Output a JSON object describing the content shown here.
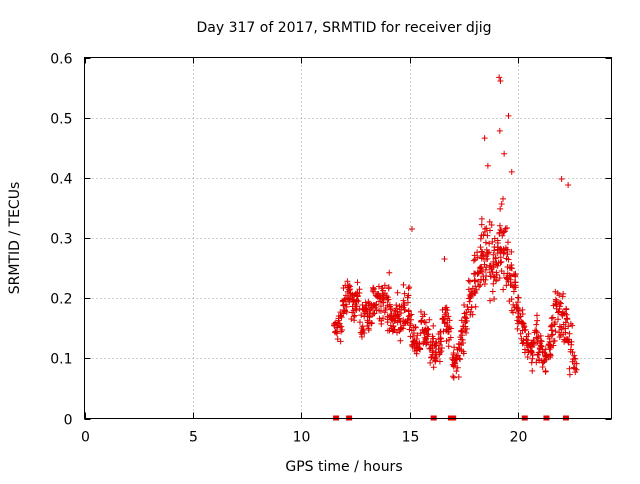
{
  "colors": {
    "series": "#e00000",
    "grid": "#a0a0a0",
    "axis": "#000000",
    "background": "#ffffff"
  },
  "chart_data": {
    "type": "scatter",
    "title": "Day 317 of 2017, SRMTID for receiver djig",
    "xlabel": "GPS time / hours",
    "ylabel": "SRMTID / TECUs",
    "xlim": [
      0,
      24.3
    ],
    "ylim": [
      0,
      0.6
    ],
    "x_ticks": [
      0,
      5,
      10,
      15,
      20
    ],
    "y_ticks": [
      0,
      0.1,
      0.2,
      0.3,
      0.4,
      0.5,
      0.6
    ],
    "x_tick_labels": [
      "0",
      "5",
      "10",
      "15",
      "20"
    ],
    "y_tick_labels": [
      "0",
      "0.1",
      "0.2",
      "0.3",
      "0.4",
      "0.5",
      "0.6"
    ],
    "grid": true,
    "marker": "+",
    "zero_value_markers_x": [
      11.6,
      12.2,
      16.1,
      16.9,
      17.0,
      20.3,
      21.3,
      22.2
    ],
    "series": [
      {
        "name": "SRMTID",
        "profile_comment": "Dense scatter, summarized as envelope samples: [hour, center, spread, count]",
        "points": [
          [
            11.6,
            0.15,
            0.03,
            14
          ],
          [
            11.8,
            0.16,
            0.04,
            14
          ],
          [
            12.0,
            0.19,
            0.05,
            16
          ],
          [
            12.2,
            0.21,
            0.04,
            16
          ],
          [
            12.4,
            0.19,
            0.04,
            16
          ],
          [
            12.6,
            0.2,
            0.04,
            16
          ],
          [
            12.8,
            0.17,
            0.05,
            16
          ],
          [
            13.0,
            0.18,
            0.04,
            16
          ],
          [
            13.2,
            0.17,
            0.04,
            16
          ],
          [
            13.4,
            0.2,
            0.05,
            16
          ],
          [
            13.6,
            0.19,
            0.05,
            16
          ],
          [
            13.8,
            0.2,
            0.05,
            16
          ],
          [
            14.0,
            0.19,
            0.06,
            16
          ],
          [
            14.2,
            0.16,
            0.04,
            16
          ],
          [
            14.4,
            0.18,
            0.05,
            16
          ],
          [
            14.6,
            0.16,
            0.04,
            16
          ],
          [
            14.8,
            0.19,
            0.05,
            16
          ],
          [
            15.0,
            0.17,
            0.06,
            16
          ],
          [
            15.2,
            0.13,
            0.04,
            16
          ],
          [
            15.4,
            0.12,
            0.04,
            16
          ],
          [
            15.6,
            0.15,
            0.04,
            16
          ],
          [
            15.8,
            0.14,
            0.04,
            16
          ],
          [
            16.0,
            0.12,
            0.04,
            16
          ],
          [
            16.2,
            0.11,
            0.04,
            16
          ],
          [
            16.4,
            0.13,
            0.05,
            16
          ],
          [
            16.6,
            0.16,
            0.05,
            16
          ],
          [
            16.8,
            0.15,
            0.05,
            16
          ],
          [
            17.0,
            0.1,
            0.04,
            16
          ],
          [
            17.2,
            0.1,
            0.04,
            16
          ],
          [
            17.4,
            0.13,
            0.05,
            16
          ],
          [
            17.6,
            0.17,
            0.05,
            16
          ],
          [
            17.8,
            0.2,
            0.06,
            16
          ],
          [
            18.0,
            0.22,
            0.07,
            18
          ],
          [
            18.2,
            0.26,
            0.08,
            18
          ],
          [
            18.4,
            0.28,
            0.09,
            18
          ],
          [
            18.6,
            0.27,
            0.09,
            18
          ],
          [
            18.8,
            0.25,
            0.08,
            18
          ],
          [
            19.0,
            0.27,
            0.09,
            18
          ],
          [
            19.2,
            0.3,
            0.1,
            18
          ],
          [
            19.4,
            0.26,
            0.09,
            18
          ],
          [
            19.6,
            0.24,
            0.09,
            18
          ],
          [
            19.8,
            0.22,
            0.08,
            16
          ],
          [
            20.0,
            0.17,
            0.05,
            16
          ],
          [
            20.2,
            0.15,
            0.05,
            16
          ],
          [
            20.4,
            0.13,
            0.05,
            16
          ],
          [
            20.6,
            0.11,
            0.04,
            16
          ],
          [
            20.8,
            0.13,
            0.05,
            16
          ],
          [
            21.0,
            0.12,
            0.04,
            16
          ],
          [
            21.2,
            0.1,
            0.03,
            16
          ],
          [
            21.4,
            0.12,
            0.04,
            16
          ],
          [
            21.6,
            0.16,
            0.05,
            16
          ],
          [
            21.8,
            0.18,
            0.06,
            16
          ],
          [
            22.0,
            0.17,
            0.06,
            16
          ],
          [
            22.2,
            0.15,
            0.06,
            16
          ],
          [
            22.4,
            0.12,
            0.06,
            14
          ],
          [
            22.6,
            0.09,
            0.03,
            12
          ]
        ],
        "extreme_points": [
          [
            19.12,
            0.567
          ],
          [
            19.18,
            0.561
          ],
          [
            19.55,
            0.503
          ],
          [
            19.15,
            0.478
          ],
          [
            18.45,
            0.466
          ],
          [
            19.35,
            0.44
          ],
          [
            22.0,
            0.398
          ],
          [
            22.3,
            0.388
          ],
          [
            18.6,
            0.42
          ],
          [
            19.7,
            0.41
          ],
          [
            15.1,
            0.315
          ],
          [
            16.6,
            0.265
          ]
        ]
      }
    ]
  }
}
